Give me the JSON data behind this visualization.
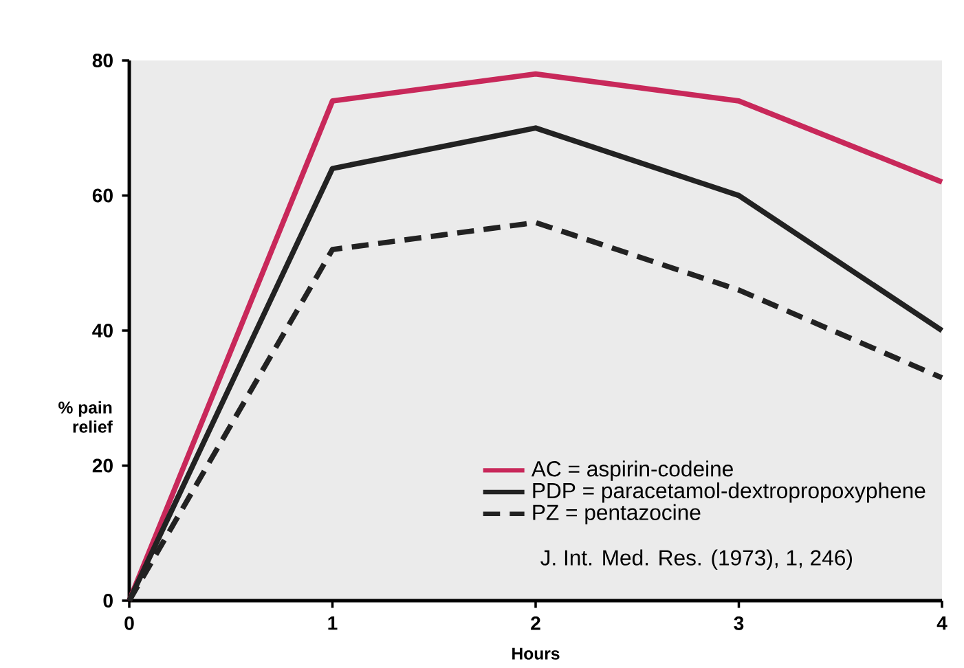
{
  "chart_data": {
    "type": "line",
    "xlabel": "Hours",
    "ylabel": "% pain relief",
    "x": [
      0,
      1,
      2,
      3,
      4
    ],
    "xlim": [
      0,
      4
    ],
    "xticks": [
      0,
      1,
      2,
      3,
      4
    ],
    "ylim": [
      0,
      80
    ],
    "yticks": [
      0,
      20,
      40,
      60,
      80
    ],
    "legend": "bottom right",
    "grid": false,
    "marker": "none",
    "series": [
      {
        "name": "AC = aspirin-codeine",
        "color": "#c8285a",
        "values": [
          0,
          74,
          78,
          74,
          62
        ],
        "line_style": "solid"
      },
      {
        "name": "PDP = paracetamol-dextropropoxyphene",
        "color": "#222222",
        "values": [
          0,
          64,
          70,
          60,
          40
        ],
        "line_style": "solid"
      },
      {
        "name": "PZ = pentazocine",
        "color": "#222222",
        "values": [
          0,
          52,
          56,
          46,
          33
        ],
        "line_style": "dashed"
      }
    ],
    "annotations": [
      "J. Int. Med. Res. (1973), 1, 246)"
    ]
  }
}
